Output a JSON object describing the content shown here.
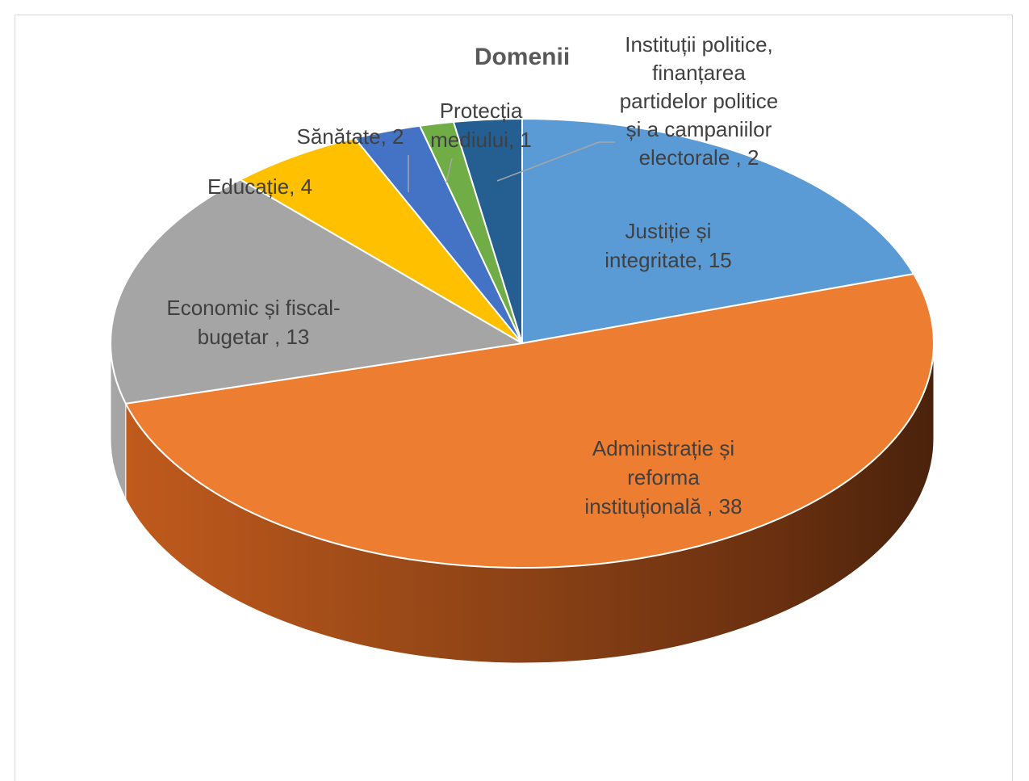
{
  "chart_data": {
    "type": "pie",
    "title": "Domenii",
    "slices": [
      {
        "label": "Justiție și integritate",
        "value": 15,
        "color": "#5b9bd5",
        "display": [
          "Justiție și",
          "integritate, 15"
        ]
      },
      {
        "label": "Administrație și reforma instituțională",
        "value": 38,
        "color": "#ed7d31",
        "display": [
          "Administrație și",
          "reforma",
          "instituțională , 38"
        ]
      },
      {
        "label": "Economic și fiscal-bugetar",
        "value": 13,
        "color": "#a5a5a5",
        "display": [
          "Economic și fiscal-",
          "bugetar , 13"
        ]
      },
      {
        "label": "Educație",
        "value": 4,
        "color": "#ffc000",
        "display": [
          "Educație, 4"
        ]
      },
      {
        "label": "Sănătate",
        "value": 2,
        "color": "#4472c4",
        "display": [
          "Sănătate, 2"
        ]
      },
      {
        "label": "Protecția mediului",
        "value": 1,
        "color": "#70ad47",
        "display": [
          "Protecția",
          "mediului, 1"
        ]
      },
      {
        "label": "Instituții politice, finanțarea partidelor politice și a campaniilor electorale",
        "value": 2,
        "color": "#255e91",
        "display": [
          "Instituții politice,",
          "finanțarea",
          "partidelor politice",
          "și a campaniilor",
          "electorale , 2"
        ]
      }
    ]
  }
}
